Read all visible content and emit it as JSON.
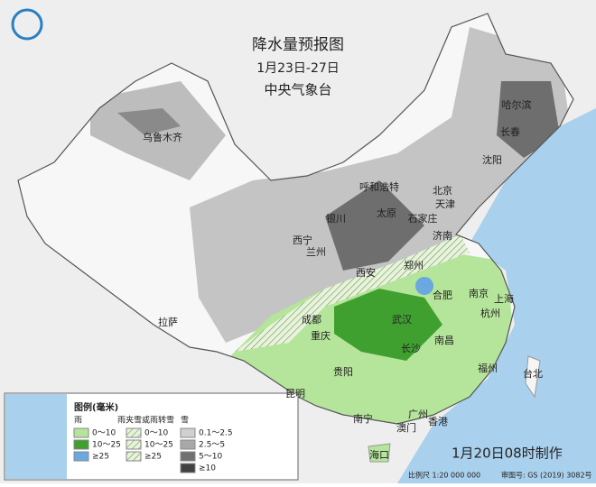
{
  "header": {
    "title": "降水量预报图",
    "period": "1月23日-27日",
    "agency": "中央气象台"
  },
  "cities": [
    "乌鲁木齐",
    "哈尔滨",
    "长春",
    "沈阳",
    "呼和浩特",
    "北京",
    "天津",
    "太原",
    "石家庄",
    "银川",
    "西宁",
    "兰州",
    "济南",
    "郑州",
    "西安",
    "拉萨",
    "成都",
    "重庆",
    "武汉",
    "合肥",
    "南京",
    "上海",
    "杭州",
    "南昌",
    "长沙",
    "贵阳",
    "昆明",
    "福州",
    "台北",
    "南宁",
    "广州",
    "澳门",
    "香港",
    "海口"
  ],
  "legend": {
    "title": "图例(毫米)",
    "columns": [
      "雨",
      "雨夹雪或雨转雪",
      "雪"
    ],
    "rain": [
      "0～10",
      "10～25",
      "≥25"
    ],
    "sleet": [
      "0～10",
      "10～25",
      "≥25"
    ],
    "snow": [
      "0.1～2.5",
      "2.5～5",
      "5～10",
      "≥10"
    ]
  },
  "footer": {
    "issued": "1月20日08时制作",
    "scale": "比例尺 1:20 000 000",
    "approval": "审图号: GS (2019) 3082号"
  }
}
